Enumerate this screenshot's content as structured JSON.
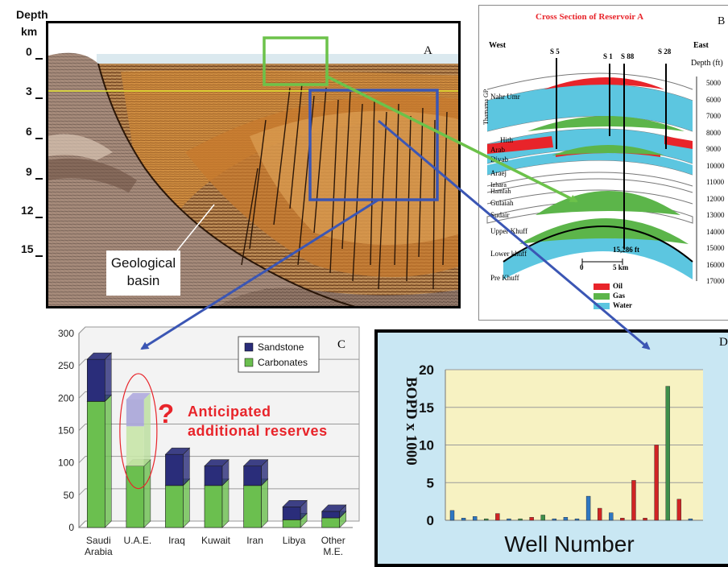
{
  "panel_a": {
    "letter": "A",
    "depth_title_1": "Depth",
    "depth_title_2": "km",
    "depth_ticks": [
      "0",
      "3",
      "6",
      "9",
      "12",
      "15"
    ],
    "basin_label_1": "Geological",
    "basin_label_2": "basin"
  },
  "panel_b": {
    "letter": "B",
    "title": "Cross Section of Reservoir A",
    "west": "West",
    "east": "East",
    "wells": [
      "S 5",
      "S 1",
      "S 88",
      "S 28"
    ],
    "depth_title": "Depth (ft)",
    "depth_ticks": [
      "5000",
      "6000",
      "7000",
      "8000",
      "9000",
      "10000",
      "11000",
      "12000",
      "13000",
      "14000",
      "15000",
      "16000",
      "17000"
    ],
    "formations": [
      "Nahr Umr",
      "Thamama GP",
      "Hith",
      "Arab",
      "Diyab",
      "Araej",
      "Izhara",
      "Hamlah",
      "Gulaiah",
      "Sudair",
      "Upper Khuff",
      "Lower khuff",
      "Pre Khuff"
    ],
    "td_label": "15,286 ft",
    "scale_zero": "0",
    "scale_label": "5 km",
    "legend": [
      {
        "label": "Oil",
        "color": "#e8242a"
      },
      {
        "label": "Gas",
        "color": "#5cb54a"
      },
      {
        "label": "Water",
        "color": "#5cc6e0"
      }
    ]
  },
  "panel_c": {
    "letter": "C",
    "annotation_1": "Anticipated",
    "annotation_2": "additional reserves",
    "question_mark": "?"
  },
  "panel_d": {
    "letter": "D"
  },
  "chart_data": [
    {
      "type": "bar",
      "stacked": true,
      "categories": [
        "Saudi Arabia",
        "U.A.E.",
        "Iraq",
        "Kuwait",
        "Iran",
        "Libya",
        "Other M.E."
      ],
      "series": [
        {
          "name": "Carbonates",
          "values": [
            195,
            95,
            65,
            65,
            65,
            12,
            15
          ],
          "color": "#6bbf4f"
        },
        {
          "name": "Sandstone",
          "values": [
            65,
            0,
            48,
            30,
            30,
            20,
            10
          ],
          "color": "#2a2d7a"
        }
      ],
      "anticipated": {
        "category": "U.A.E.",
        "from": 95,
        "to": 198
      },
      "ylim": [
        0,
        300
      ],
      "yticks": [
        0,
        50,
        100,
        150,
        200,
        250,
        300
      ],
      "legend_position": "top-right",
      "grid": true
    },
    {
      "type": "bar",
      "xlabel": "Well Number",
      "ylabel": "BOPD x 1000",
      "ylim": [
        0,
        20
      ],
      "yticks": [
        0,
        5,
        10,
        15,
        20
      ],
      "grid": true,
      "values": [
        {
          "well": 1,
          "value": 1.3,
          "color": "#2e77c2"
        },
        {
          "well": 2,
          "value": 0.3,
          "color": "#2e77c2"
        },
        {
          "well": 3,
          "value": 0.5,
          "color": "#2e77c2"
        },
        {
          "well": 4,
          "value": 0.2,
          "color": "#3e8f4a"
        },
        {
          "well": 5,
          "value": 0.9,
          "color": "#d02424"
        },
        {
          "well": 6,
          "value": 0.2,
          "color": "#2e77c2"
        },
        {
          "well": 7,
          "value": 0.2,
          "color": "#3e8f4a"
        },
        {
          "well": 8,
          "value": 0.4,
          "color": "#d02424"
        },
        {
          "well": 9,
          "value": 0.7,
          "color": "#3e8f4a"
        },
        {
          "well": 10,
          "value": 0.2,
          "color": "#2e77c2"
        },
        {
          "well": 11,
          "value": 0.4,
          "color": "#2e77c2"
        },
        {
          "well": 12,
          "value": 0.2,
          "color": "#2e77c2"
        },
        {
          "well": 13,
          "value": 3.2,
          "color": "#2e77c2"
        },
        {
          "well": 14,
          "value": 1.6,
          "color": "#d02424"
        },
        {
          "well": 15,
          "value": 1.0,
          "color": "#2e77c2"
        },
        {
          "well": 16,
          "value": 0.3,
          "color": "#d02424"
        },
        {
          "well": 17,
          "value": 5.3,
          "color": "#d02424"
        },
        {
          "well": 18,
          "value": 0.3,
          "color": "#d02424"
        },
        {
          "well": 19,
          "value": 10.0,
          "color": "#d02424"
        },
        {
          "well": 20,
          "value": 17.8,
          "color": "#3e8f4a"
        },
        {
          "well": 21,
          "value": 2.8,
          "color": "#d02424"
        },
        {
          "well": 22,
          "value": 0.2,
          "color": "#2e77c2"
        }
      ]
    }
  ]
}
